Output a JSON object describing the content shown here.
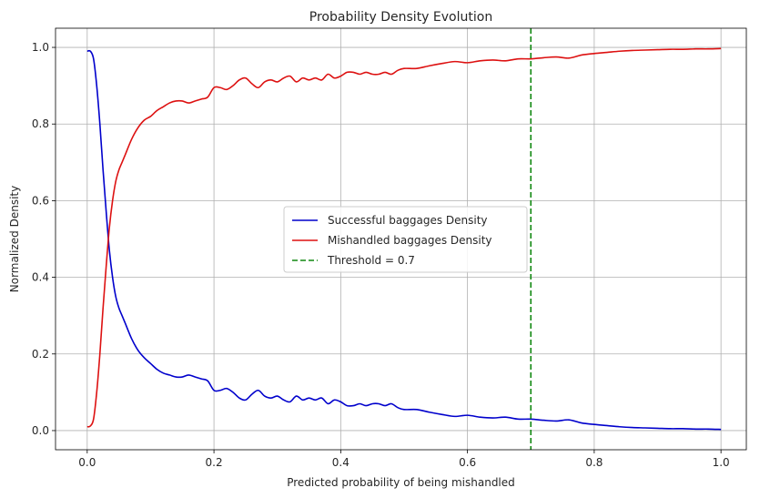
{
  "chart_data": {
    "type": "line",
    "title": "Probability Density Evolution",
    "xlabel": "Predicted probability of being mishandled",
    "ylabel": "Normalized Density",
    "xlim": [
      -0.05,
      1.04
    ],
    "ylim": [
      -0.05,
      1.05
    ],
    "xticks": [
      0.0,
      0.2,
      0.4,
      0.6,
      0.8,
      1.0
    ],
    "xtick_labels": [
      "0.0",
      "0.2",
      "0.4",
      "0.6",
      "0.8",
      "1.0"
    ],
    "yticks": [
      0.0,
      0.2,
      0.4,
      0.6,
      0.8,
      1.0
    ],
    "ytick_labels": [
      "0.0",
      "0.2",
      "0.4",
      "0.6",
      "0.8",
      "1.0"
    ],
    "grid": true,
    "legend_position": "center-right",
    "series": [
      {
        "name": "Successful baggages Density",
        "color": "#0000cc",
        "style": "solid",
        "x": [
          0.0,
          0.005,
          0.01,
          0.015,
          0.02,
          0.025,
          0.03,
          0.035,
          0.04,
          0.045,
          0.05,
          0.055,
          0.06,
          0.07,
          0.08,
          0.09,
          0.1,
          0.11,
          0.12,
          0.13,
          0.14,
          0.15,
          0.16,
          0.17,
          0.18,
          0.19,
          0.2,
          0.21,
          0.22,
          0.23,
          0.24,
          0.25,
          0.26,
          0.27,
          0.28,
          0.29,
          0.3,
          0.31,
          0.32,
          0.33,
          0.34,
          0.35,
          0.36,
          0.37,
          0.38,
          0.39,
          0.4,
          0.41,
          0.42,
          0.43,
          0.44,
          0.45,
          0.46,
          0.47,
          0.48,
          0.49,
          0.5,
          0.52,
          0.54,
          0.56,
          0.58,
          0.6,
          0.62,
          0.64,
          0.66,
          0.68,
          0.7,
          0.72,
          0.74,
          0.76,
          0.78,
          0.8,
          0.82,
          0.84,
          0.86,
          0.88,
          0.9,
          0.92,
          0.94,
          0.96,
          0.98,
          1.0
        ],
        "y": [
          0.99,
          0.99,
          0.97,
          0.9,
          0.8,
          0.68,
          0.57,
          0.47,
          0.4,
          0.35,
          0.32,
          0.3,
          0.28,
          0.24,
          0.21,
          0.19,
          0.175,
          0.16,
          0.15,
          0.145,
          0.14,
          0.14,
          0.145,
          0.14,
          0.135,
          0.13,
          0.105,
          0.105,
          0.11,
          0.1,
          0.085,
          0.08,
          0.095,
          0.105,
          0.09,
          0.085,
          0.09,
          0.08,
          0.075,
          0.09,
          0.08,
          0.085,
          0.08,
          0.085,
          0.07,
          0.08,
          0.075,
          0.065,
          0.065,
          0.07,
          0.065,
          0.07,
          0.07,
          0.065,
          0.07,
          0.06,
          0.055,
          0.055,
          0.048,
          0.042,
          0.037,
          0.04,
          0.035,
          0.033,
          0.035,
          0.03,
          0.03,
          0.027,
          0.025,
          0.028,
          0.02,
          0.016,
          0.013,
          0.01,
          0.008,
          0.007,
          0.006,
          0.005,
          0.005,
          0.004,
          0.004,
          0.003
        ]
      },
      {
        "name": "Mishandled baggages Density",
        "color": "#dd1111",
        "style": "solid",
        "x": [
          0.0,
          0.005,
          0.01,
          0.015,
          0.02,
          0.025,
          0.03,
          0.035,
          0.04,
          0.045,
          0.05,
          0.055,
          0.06,
          0.07,
          0.08,
          0.09,
          0.1,
          0.11,
          0.12,
          0.13,
          0.14,
          0.15,
          0.16,
          0.17,
          0.18,
          0.19,
          0.2,
          0.21,
          0.22,
          0.23,
          0.24,
          0.25,
          0.26,
          0.27,
          0.28,
          0.29,
          0.3,
          0.31,
          0.32,
          0.33,
          0.34,
          0.35,
          0.36,
          0.37,
          0.38,
          0.39,
          0.4,
          0.41,
          0.42,
          0.43,
          0.44,
          0.45,
          0.46,
          0.47,
          0.48,
          0.49,
          0.5,
          0.52,
          0.54,
          0.56,
          0.58,
          0.6,
          0.62,
          0.64,
          0.66,
          0.68,
          0.7,
          0.72,
          0.74,
          0.76,
          0.78,
          0.8,
          0.82,
          0.84,
          0.86,
          0.88,
          0.9,
          0.92,
          0.94,
          0.96,
          0.98,
          1.0
        ],
        "y": [
          0.01,
          0.012,
          0.03,
          0.1,
          0.2,
          0.32,
          0.43,
          0.53,
          0.6,
          0.65,
          0.68,
          0.7,
          0.72,
          0.76,
          0.79,
          0.81,
          0.82,
          0.835,
          0.845,
          0.855,
          0.86,
          0.86,
          0.855,
          0.86,
          0.865,
          0.87,
          0.895,
          0.895,
          0.89,
          0.9,
          0.915,
          0.92,
          0.905,
          0.895,
          0.91,
          0.915,
          0.91,
          0.92,
          0.925,
          0.91,
          0.92,
          0.915,
          0.92,
          0.915,
          0.93,
          0.92,
          0.925,
          0.935,
          0.935,
          0.93,
          0.935,
          0.93,
          0.93,
          0.935,
          0.93,
          0.94,
          0.945,
          0.945,
          0.952,
          0.958,
          0.963,
          0.96,
          0.965,
          0.967,
          0.965,
          0.97,
          0.97,
          0.973,
          0.975,
          0.972,
          0.98,
          0.984,
          0.987,
          0.99,
          0.992,
          0.993,
          0.994,
          0.995,
          0.995,
          0.996,
          0.996,
          0.997
        ]
      }
    ],
    "threshold": {
      "label": "Threshold = 0.7",
      "x": 0.7,
      "color": "#118811",
      "style": "dashed"
    }
  }
}
